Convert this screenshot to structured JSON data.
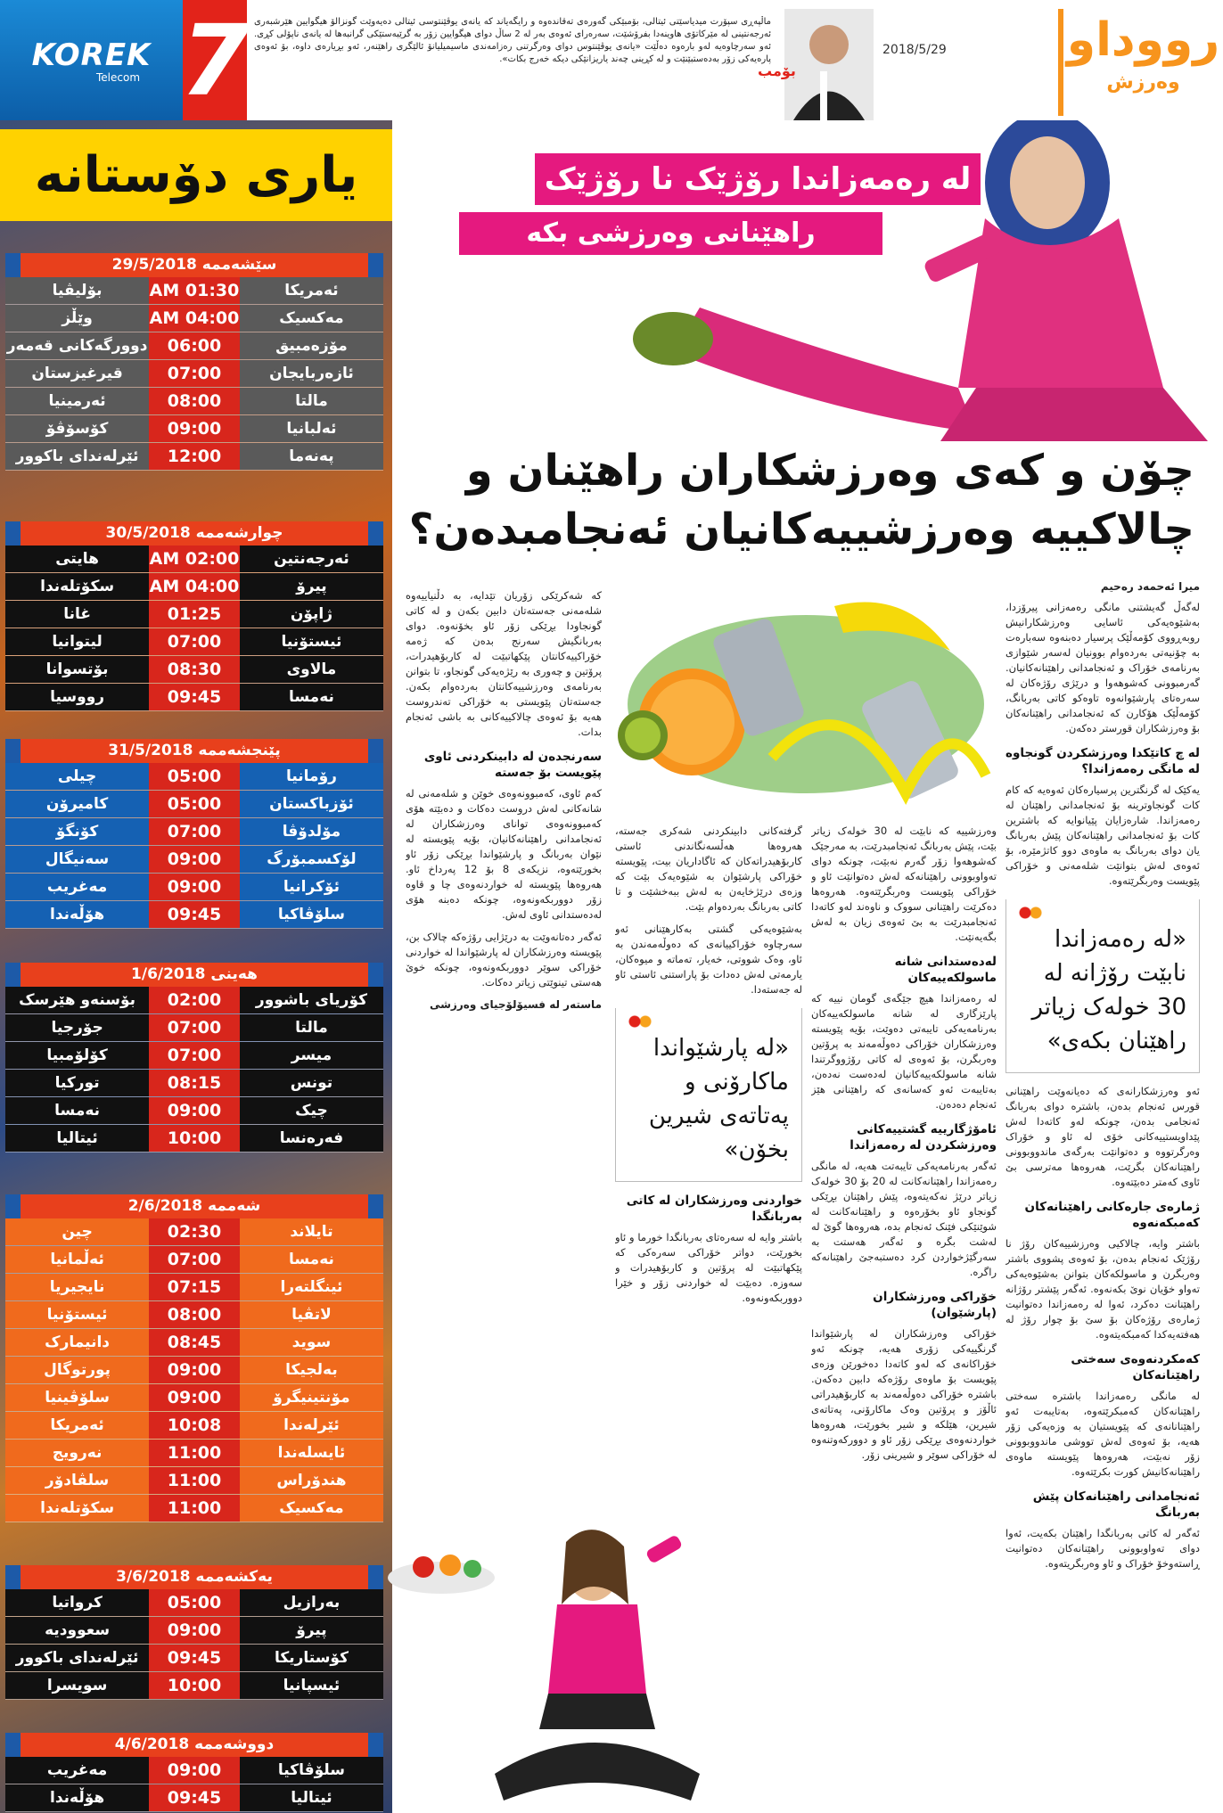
{
  "header": {
    "logo": "رووداو",
    "logo_sub": "وەرزش",
    "date": "2018/5/29",
    "tag": "بۆمب",
    "ticker": "ماڵپەڕی سپۆرت میدیاسێتی ئیتالی، بۆمبێکی گەورەی تەقاندەوە و رایگەیاند کە یانەی یوڤێنتوسی ئیتالی دەیەوێت گونزالۆ هیگوایین هێرشبەری ئەرجەنتینی لە مێرکاتۆی هاوینەدا بفرۆشێت، سەرەرای ئەوەی بەر لە 2 ساڵ دوای هیگوایین زۆر بە گرێبەستێکی گرانبەها لە یانەی ناپۆلی کڕی. ئەو سەرچاوەیە لەو بارەوە دەڵێت «یانەی یوڤێنتوس دوای وەرگرتنی رەزامەندی ماسیمیلیانۆ ئالێگری راهێنەر، ئەو بڕیارەی داوە، بۆ ئەوەی پارەیەکی زۆر بەدەستبێنێت و لە کڕینی چەند یاریزانێکی دیکە خەرج بکات».",
    "page_number": "7",
    "sponsor": "KOREK",
    "sponsor_sub": "Telecom"
  },
  "sidebar": {
    "title": "یاری دۆستانە",
    "days": [
      {
        "date": "سێشەممە 29/5/2018",
        "matches": [
          [
            "ئەمریکا",
            "AM 01:30",
            "بۆلیڤیا"
          ],
          [
            "مەکسیک",
            "AM 04:00",
            "وێڵز"
          ],
          [
            "مۆزەمبیق",
            "06:00",
            "دوورگەکانی قەمەر"
          ],
          [
            "ئازەربایجان",
            "07:00",
            "قیرغیزستان"
          ],
          [
            "مالتا",
            "08:00",
            "ئەرمینیا"
          ],
          [
            "ئەلبانیا",
            "09:00",
            "کۆسۆڤۆ"
          ],
          [
            "پەنەما",
            "12:00",
            "ئێرلەندای باکوور"
          ]
        ]
      },
      {
        "date": "چوارشەممە 30/5/2018",
        "matches": [
          [
            "ئەرجەنتین",
            "AM 02:00",
            "هایتی"
          ],
          [
            "پیرۆ",
            "AM 04:00",
            "سکۆتلەندا"
          ],
          [
            "ژاپۆن",
            "01:25",
            "غانا"
          ],
          [
            "ئیستۆنیا",
            "07:00",
            "لیتوانیا"
          ],
          [
            "مالاوی",
            "08:30",
            "بۆتسوانا"
          ],
          [
            "نەمسا",
            "09:45",
            "رووسیا"
          ]
        ]
      },
      {
        "date": "پێنجشەممە 31/5/2018",
        "matches": [
          [
            "رۆمانیا",
            "05:00",
            "چیلی"
          ],
          [
            "ئۆزباکستان",
            "05:00",
            "کامیرۆن"
          ],
          [
            "مۆلدۆڤا",
            "07:00",
            "کۆنگۆ"
          ],
          [
            "لۆکسمبۆرگ",
            "09:00",
            "سەنیگال"
          ],
          [
            "ئۆکرانیا",
            "09:00",
            "مەغریب"
          ],
          [
            "سلۆڤاکیا",
            "09:45",
            "هۆڵەندا"
          ]
        ]
      },
      {
        "date": "هەینی 1/6/2018",
        "matches": [
          [
            "کۆریای باشوور",
            "02:00",
            "بۆسنەو هێرسک"
          ],
          [
            "مالتا",
            "07:00",
            "جۆرجیا"
          ],
          [
            "میسر",
            "07:00",
            "کۆلۆمبیا"
          ],
          [
            "تونس",
            "08:15",
            "تورکیا"
          ],
          [
            "چیک",
            "09:00",
            "نەمسا"
          ],
          [
            "فەرەنسا",
            "10:00",
            "ئیتالیا"
          ]
        ]
      },
      {
        "date": "شەممە 2/6/2018",
        "matches": [
          [
            "تایلاند",
            "02:30",
            "چین"
          ],
          [
            "نەمسا",
            "07:00",
            "ئەڵمانیا"
          ],
          [
            "ئینگلتەرا",
            "07:15",
            "نایجیریا"
          ],
          [
            "لاتڤیا",
            "08:00",
            "ئیستۆنیا"
          ],
          [
            "سوید",
            "08:45",
            "دانیمارک"
          ],
          [
            "بەلجیکا",
            "09:00",
            "پورتوگال"
          ],
          [
            "مۆنتینیگرۆ",
            "09:00",
            "سلۆڤینیا"
          ],
          [
            "ئێرلەندا",
            "10:08",
            "ئەمریکا"
          ],
          [
            "ئایسلەندا",
            "11:00",
            "نەرویج"
          ],
          [
            "هندۆراس",
            "11:00",
            "سلڤادۆر"
          ],
          [
            "مەکسیک",
            "11:00",
            "سکۆتلەندا"
          ]
        ]
      },
      {
        "date": "یەکشەممە 3/6/2018",
        "matches": [
          [
            "بەرازیل",
            "05:00",
            "کرواتیا"
          ],
          [
            "پیرۆ",
            "09:00",
            "سعوودیە"
          ],
          [
            "کۆستاریکا",
            "09:45",
            "ئێرلەندای باکوور"
          ],
          [
            "ئیسپانیا",
            "10:00",
            "سویسرا"
          ]
        ]
      },
      {
        "date": "دووشەممە 4/6/2018",
        "matches": [
          [
            "سلۆڤاکیا",
            "09:00",
            "مەغریب"
          ],
          [
            "ئیتالیا",
            "09:45",
            "هۆڵەندا"
          ]
        ]
      }
    ]
  },
  "article": {
    "kicker": [
      "لە رەمەزاندا رۆژێک نا رۆژێک",
      "راهێنانی وەرزشی بکە"
    ],
    "headline": "چۆن و کەی وەرزشکاران راهێنان و چالاکییە وەرزشییەکانیان ئەنجامبدەن؟",
    "columns": [
      [
        {
          "byline": "میرا ئەحمەد رەحیم"
        },
        {
          "text": "لەگەڵ گەیشتنی مانگی رەمەزانی پیرۆزدا، بەشێوەیەکی ئاسایی وەرزشکارانیش روبەڕووی کۆمەڵێک پرسیار دەبنەوە سەبارەت بە چۆنیەتی بەردەوام بوونیان لەسەر شێوازی بەرنامەی خۆراک و ئەنجامدانی راهێنانەکانیان. گەرمبوونی کەشوهەوا و درێژی رۆژەکان لە سەرەتای پارشێوانەوە تاوەکو کاتی بەربانگ، کۆمەڵێک هۆکارن کە ئەنجامدانی راهێنانەکان بۆ وەرزشکاران قورستر دەکەن."
        },
        {
          "heading": "لە چ کاتێکدا وەرزشکردن گونجاوە لە مانگی رەمەزاندا؟"
        },
        {
          "text": "یەکێک لە گرنگترین پرسیارەکان ئەوەیە کە کام کات گونجاوترینە بۆ ئەنجامدانی راهێنان لە رەمەزاندا. شارەزایان پێیانوایە کە باشترین کات بۆ ئەنجامدانی راهێنانەکان پێش بەربانگ یان دوای بەربانگ بە ماوەی دوو کاتژمێرە، بۆ ئەوەی لەش بتوانێت شلەمەنی و خۆراکی پێویست وەربگرێتەوە."
        },
        {
          "quote": "«لە رەمەزاندا نابێت رۆژانە لە 30 خولەک زیاتر راهێنان بکەی»"
        },
        {
          "text": "ئەو وەرزشکارانەی کە دەیانەوێت راهێنانی قورس ئەنجام بدەن، باشترە دوای بەربانگ ئەنجامی بدەن، چونکە لەو کاتەدا لەش پێداویستییەکانی خۆی لە ئاو و خۆراک وەرگرتووە و دەتوانێت بەرگەی ماندووبوونی راهێنانەکان بگرێت، هەروەها مەترسی بێ ئاوی کەمتر دەبێتەوە."
        },
        {
          "heading": "ژمارەی جارەکانی راهێنانەکان کەمبکەنەوە"
        },
        {
          "text": "باشتر وایە، چالاکیی وەرزشییەکان رۆژ نا رۆژێک ئەنجام بدەن، بۆ ئەوەی پشووی باشتر وەربگرن و ماسولکەکان بتوانن بەشێوەیەکی تەواو خۆیان نوێ بکەنەوە. ئەگەر پێشتر رۆژانە راهێنانت دەکرد، ئەوا لە رەمەزاندا دەتوانیت ژمارەی رۆژەکان بۆ سێ بۆ چوار رۆژ لە هەفتەیەکدا کەمبکەیتەوە."
        },
        {
          "heading": "کەمکردنەوەی سەختی راهێنانەکان"
        },
        {
          "text": "لە مانگی رەمەزاندا باشترە سەختی راهێنانەکان کەمبکرێتەوە، بەتایبەت ئەو راهێنانانەی کە پێویستیان بە وزەیەکی زۆر هەیە، بۆ ئەوەی لەش تووشی ماندووبوونی زۆر نەبێت، هەروەها پێویستە ماوەی راهێنانەکانیش کورت بکرێتەوە."
        },
        {
          "heading": "ئەنجامدانی راهێنانەکان پێش بەربانگ"
        },
        {
          "text": "ئەگەر لە کاتی بەربانگدا راهێنان بکەیت، ئەوا دوای تەواوبوونی راهێنانەکان دەتوانیت ڕاستەوخۆ خۆراک و ئاو وەربگریتەوە."
        }
      ],
      [
        {
          "text": "وەرزشییە کە نابێت لە 30 خولەک زیاتر بێت، پێش بەربانگ ئەنجامبدرێت، بە مەرجێک کەشوهەوا زۆر گەرم نەبێت، چونکە دوای تەواوبوونی راهێنانەکە لەش دەتوانێت ئاو و خۆراکی پێویست وەربگرێتەوە. هەروەها دەکرێت راهێنانی سووک و ناوەند لەو کاتەدا ئەنجامبدرێت بە بێ ئەوەی زیان بە لەش بگەیەنێت."
        },
        {
          "heading": "لەدەستدانی شانە ماسولکەییەکان"
        },
        {
          "text": "لە رەمەزاندا هیچ جێگەی گومان نییە کە پارێزگاری لە شانە ماسولکەییەکان بەرنامەیەکی تایبەتی دەوێت، بۆیە پێویستە وەرزشکاران خۆراکی دەوڵەمەند بە پرۆتین وەربگرن، بۆ ئەوەی لە کاتی رۆژووگرتندا شانە ماسولکەییەکانیان لەدەست نەدەن، بەتایبەت ئەو کەسانەی کە راهێنانی هێز ئەنجام دەدەن."
        },
        {
          "heading": "ئامۆژگارییە گشتییەکانی وەرزشکردن لە رەمەزاندا"
        },
        {
          "text": "ئەگەر بەرنامەیەکی تایبەتت هەیە، لە مانگی رەمەزاندا راهێنانەکانت لە 20 بۆ 30 خولەک زیاتر درێژ نەکەیتەوە، پێش راهێنان بڕێکی گونجاو ئاو بخۆرەوە و راهێنانەکانت لە شوێنێکی فێنک ئەنجام بدە، هەروەها گوێ لە لەشت بگرە و ئەگەر هەستت بە سەرگێژخواردن کرد دەستبەجێ راهێنانەکە راگرە."
        },
        {
          "heading": "خۆراکی وەرزشکاران (پارشێوان)"
        },
        {
          "text": "خۆراکی وەرزشکاران لە پارشێواندا گرنگییەکی زۆری هەیە، چونکە ئەو خۆراکانەی کە لەو کاتەدا دەخورێن وزەی پێویست بۆ ماوەی رۆژەکە دابین دەکەن. باشترە خۆراکی دەوڵەمەند بە کاربۆهیدراتی ئاڵۆز و پرۆتین وەک ماکارۆنی، پەتاتەی شیرین، هێلکە و شیر بخورێت، هەروەها خواردنەوەی بڕێکی زۆر ئاو و دوورکەوتنەوە لە خۆراکی سوێر و شیرینی زۆر."
        }
      ],
      [
        {
          "text": "گرفتەکانی دابینکردنی شەکری جەستە، هەروەها هەڵسەنگاندنی ئاستی کاربۆهیدراتەکان کە ئاگاداریان بیت، پێویستە خۆراکی پارشێوان بە شێوەیەک بێت کە وزەی درێژخایەن بە لەش ببەخشێت و تا کاتی بەربانگ بەردەوام بێت."
        },
        {
          "text": "بەشێوەیەکی گشتی بەکارهێنانی ئەو سەرچاوە خۆراکییانەی کە دەوڵەمەندن بە ئاو، وەک شووتی، خەیار، تەماتە و میوەکان، یارمەتی لەش دەدات بۆ پاراستنی ئاستی ئاو لە جەستەدا."
        },
        {
          "quote": "«لە پارشێواندا ماکارۆنی و پەتاتەی شیرین بخۆن»"
        },
        {
          "heading": "خواردنی وەرزشکاران لە کاتی بەربانگدا"
        },
        {
          "text": "باشتر وایە لە سەرەتای بەربانگدا خورما و ئاو بخورێت، دواتر خۆراکی سەرەکی کە پێکهاتبێت لە پرۆتین و کاربۆهیدرات و سەوزە. دەبێت لە خواردنی زۆر و خێرا دووربکەونەوە."
        }
      ],
      [
        {
          "text": "کە شەکرێکی زۆریان تێدایە، بە دڵنیاییەوە شلەمەنی جەستەتان دابین بکەن و لە کاتی گونجاودا بڕێکی زۆر ئاو بخۆنەوە. دوای بەربانگیش سەرنج بدەن کە ژەمە خۆراکییەکانتان پێکهاتبێت لە کاربۆهیدرات، پرۆتین و چەوری بە رێژەیەکی گونجاو، تا بتوانن بەرنامەی وەرزشییەکانتان بەردەوام بکەن. جەستەتان پێویستی بە خۆراکی تەندروست هەیە بۆ ئەوەی چالاکییەکانی بە باشی ئەنجام بدات."
        },
        {
          "heading": "سەرنجدەن لە دابینکردنی ئاوی پێویست بۆ جەستە"
        },
        {
          "text": "کەم ئاوی، کەمبوونەوەی خوێن و شلەمەنی لە شانەکانی لەش دروست دەکات و دەبێتە هۆی کەمبوونەوەی توانای وەرزشکاران لە ئەنجامدانی راهێنانەکانیان، بۆیە پێویستە لە نێوان بەربانگ و پارشێواندا بڕێکی زۆر ئاو بخورێتەوە، نزیکەی 8 بۆ 12 پەرداخ ئاو. هەروەها پێویستە لە خواردنەوەی چا و قاوە زۆر دووربکەونەوە، چونکە دەبنە هۆی لەدەستدانی ئاوی لەش."
        },
        {
          "text": "ئەگەر دەتانەوێت بە درێژایی رۆژەکە چالاک بن، پێویستە وەرزشکاران لە پارشێواندا لە خواردنی خۆراکی سوێر دووربکەونەوە، چونکە خوێ هەستی تینوێتی زیاتر دەکات."
        },
        {
          "author": "ماستەر لە فسیۆلۆجیای وەرزشی"
        }
      ]
    ]
  }
}
